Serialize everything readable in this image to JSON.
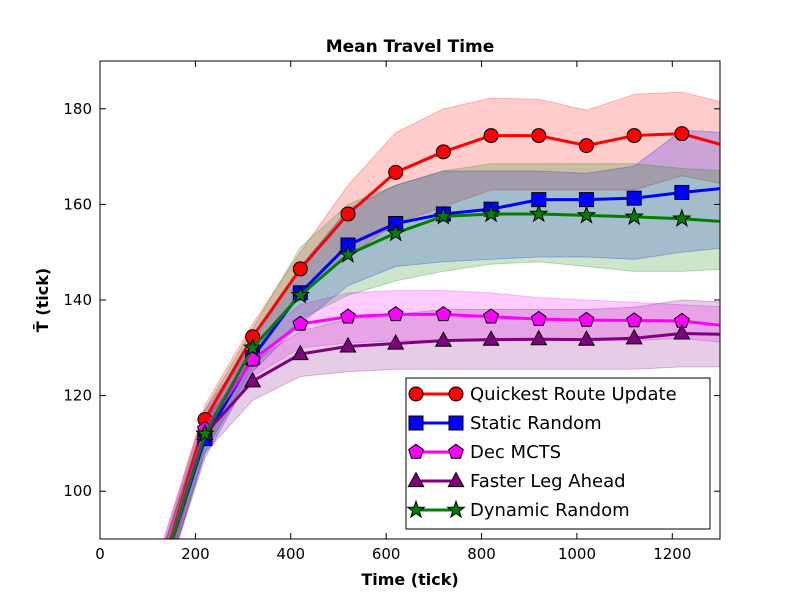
{
  "chart_data": {
    "type": "line",
    "title": "Mean Travel Time",
    "xlabel": "Time (tick)",
    "ylabel": "T̄  (tick)",
    "x": [
      120,
      220,
      320,
      420,
      520,
      620,
      720,
      820,
      920,
      1020,
      1120,
      1220,
      1320
    ],
    "xlim": [
      0,
      1300
    ],
    "ylim": [
      90,
      190
    ],
    "xticks": [
      0,
      200,
      400,
      600,
      800,
      1000,
      1200
    ],
    "yticks": [
      100,
      120,
      140,
      160,
      180
    ],
    "legend": "lower right",
    "series": [
      {
        "name": "Quickest Route Update",
        "color": "#ff0000",
        "marker": "circle",
        "values": [
          80,
          115,
          132.3,
          146.5,
          158,
          166.7,
          171,
          174.4,
          174.4,
          172.3,
          174.4,
          174.8,
          172
        ],
        "upper": [
          85,
          118,
          135,
          150,
          164,
          175,
          180,
          182.2,
          182,
          179.7,
          183,
          183.5,
          181
        ],
        "lower": [
          75,
          112,
          129,
          141.5,
          149,
          156,
          159.5,
          163,
          163,
          163,
          163,
          166,
          164
        ]
      },
      {
        "name": "Static Random",
        "color": "#0000ff",
        "marker": "square",
        "values": [
          80,
          111,
          128,
          141.5,
          151.5,
          156,
          158,
          159,
          161,
          161,
          161.3,
          162.5,
          163.5
        ],
        "upper": [
          84,
          115,
          131,
          147,
          159,
          164,
          167,
          167,
          167,
          166.5,
          168,
          175.5,
          175
        ],
        "lower": [
          76,
          107,
          125,
          135,
          143,
          147,
          148,
          148.5,
          149,
          149,
          148.5,
          150,
          151
        ]
      },
      {
        "name": "Dec MCTS",
        "color": "#ff00ff",
        "marker": "pentagon",
        "values": [
          80,
          113,
          127.5,
          135,
          136.5,
          137,
          137,
          136.5,
          136,
          135.8,
          135.7,
          135.6,
          134.5
        ],
        "upper": [
          86,
          117,
          131,
          139,
          141.5,
          142,
          142,
          141.5,
          140.5,
          140,
          139.5,
          139,
          138.5
        ],
        "lower": [
          74,
          109,
          124,
          130,
          131,
          131.5,
          131.5,
          131.5,
          131.5,
          131.5,
          131.5,
          132,
          131
        ]
      },
      {
        "name": "Faster Leg Ahead",
        "color": "#800080",
        "marker": "triangle",
        "values": [
          80,
          112,
          123,
          128.7,
          130.3,
          130.9,
          131.5,
          131.7,
          131.8,
          131.7,
          132,
          133,
          132.8
        ],
        "upper": [
          84,
          115,
          127,
          133.5,
          136,
          137,
          138,
          138,
          138,
          138,
          138.5,
          140,
          139.5
        ],
        "lower": [
          76,
          108,
          119,
          124,
          125,
          125.5,
          125.5,
          125.5,
          125.5,
          125.5,
          125.5,
          126,
          126
        ]
      },
      {
        "name": "Dynamic Random",
        "color": "#008000",
        "marker": "star",
        "values": [
          80,
          112,
          130,
          141,
          149.5,
          154,
          157.5,
          158,
          158,
          157.7,
          157.4,
          157,
          156.3
        ],
        "upper": [
          84,
          117,
          134,
          151,
          160,
          164,
          167,
          168.5,
          168.5,
          168.5,
          168.5,
          167.5,
          167
        ],
        "lower": [
          76,
          108,
          126,
          136,
          141,
          144,
          146,
          147.5,
          148,
          147,
          146,
          146,
          146.5
        ]
      }
    ]
  }
}
